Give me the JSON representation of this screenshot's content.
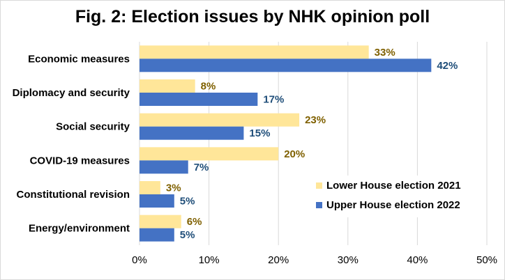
{
  "chart_data": {
    "type": "bar",
    "orientation": "horizontal",
    "title": "Fig. 2: Election issues by NHK opinion poll",
    "categories": [
      "Economic measures",
      "Diplomacy and security",
      "Social security",
      "COVID-19 measures",
      "Constitutional revision",
      "Energy/environment"
    ],
    "series": [
      {
        "name": "Lower House election 2021",
        "color": "#ffe699",
        "label_color": "#7f6000",
        "values": [
          33,
          8,
          23,
          20,
          3,
          6
        ]
      },
      {
        "name": "Upper House election 2022",
        "color": "#4472c4",
        "label_color": "#1f4e79",
        "values": [
          42,
          17,
          15,
          7,
          5,
          5
        ]
      }
    ],
    "xlim": [
      0,
      50
    ],
    "xticks": [
      0,
      10,
      20,
      30,
      40,
      50
    ],
    "tick_suffix": "%",
    "value_suffix": "%",
    "grid": true,
    "legend_position": "bottom-right"
  }
}
